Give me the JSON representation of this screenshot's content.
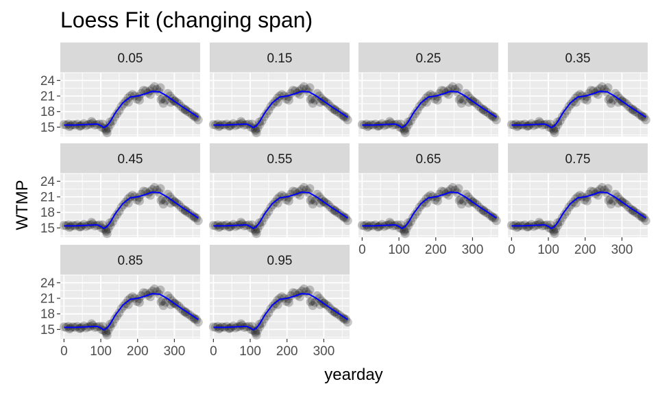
{
  "chart_data": {
    "type": "scatter",
    "title": "Loess Fit (changing span)",
    "xlabel": "yearday",
    "ylabel": "WTMP",
    "panels": [
      "0.05",
      "0.15",
      "0.25",
      "0.35",
      "0.45",
      "0.55",
      "0.65",
      "0.75",
      "0.85",
      "0.95"
    ],
    "xlim": [
      -10,
      370
    ],
    "ylim": [
      13.2,
      25.5
    ],
    "x_ticks": [
      0,
      100,
      200,
      300
    ],
    "y_ticks": [
      15,
      18,
      21,
      24
    ],
    "grid": true,
    "colors": {
      "panel_background": "#ebebeb",
      "grid": "#ffffff",
      "strip": "#d9d9d9",
      "points": "#000000",
      "fit_line": "#0000ff"
    },
    "points_x": [
      0,
      6,
      12,
      18,
      24,
      30,
      36,
      42,
      48,
      54,
      60,
      66,
      72,
      78,
      84,
      90,
      96,
      102,
      108,
      114,
      117,
      120,
      126,
      132,
      138,
      144,
      150,
      156,
      162,
      168,
      174,
      180,
      186,
      192,
      198,
      204,
      210,
      216,
      222,
      228,
      234,
      240,
      246,
      252,
      258,
      264,
      270,
      276,
      282,
      288,
      294,
      300,
      306,
      312,
      318,
      324,
      330,
      336,
      342,
      348,
      354,
      360,
      365,
      15,
      45,
      75,
      105,
      115,
      125,
      175,
      205,
      235,
      262,
      268,
      290,
      300,
      330,
      355
    ],
    "points_y": [
      15.5,
      15.4,
      15.6,
      15.3,
      15.5,
      15.4,
      15.6,
      15.2,
      15.4,
      15.7,
      15.3,
      15.5,
      15.6,
      15.8,
      15.4,
      15.5,
      15.6,
      15.0,
      14.8,
      14.6,
      13.9,
      14.8,
      15.5,
      16.2,
      17.0,
      17.6,
      18.2,
      19.0,
      19.5,
      20.0,
      20.6,
      21.0,
      21.3,
      21.0,
      20.4,
      20.9,
      21.5,
      22.1,
      22.0,
      21.6,
      22.0,
      22.4,
      22.8,
      22.3,
      21.8,
      20.3,
      19.6,
      20.2,
      21.5,
      21.0,
      20.5,
      20.1,
      19.8,
      19.5,
      19.0,
      18.6,
      18.4,
      18.0,
      17.8,
      17.4,
      17.2,
      16.9,
      16.4,
      15.1,
      15.2,
      16.1,
      15.6,
      14.3,
      16.0,
      19.8,
      20.2,
      21.3,
      22.6,
      20.5,
      19.8,
      20.0,
      18.3,
      17.0
    ],
    "fit_x": [
      0,
      30,
      60,
      90,
      100,
      108,
      116,
      125,
      140,
      160,
      180,
      200,
      220,
      240,
      260,
      280,
      300,
      320,
      340,
      365
    ],
    "fit_y": [
      15.4,
      15.4,
      15.5,
      15.6,
      15.3,
      14.9,
      15.2,
      16.0,
      17.8,
      19.7,
      20.8,
      21.0,
      21.4,
      21.9,
      21.8,
      21.0,
      20.0,
      19.0,
      18.1,
      16.9
    ]
  }
}
